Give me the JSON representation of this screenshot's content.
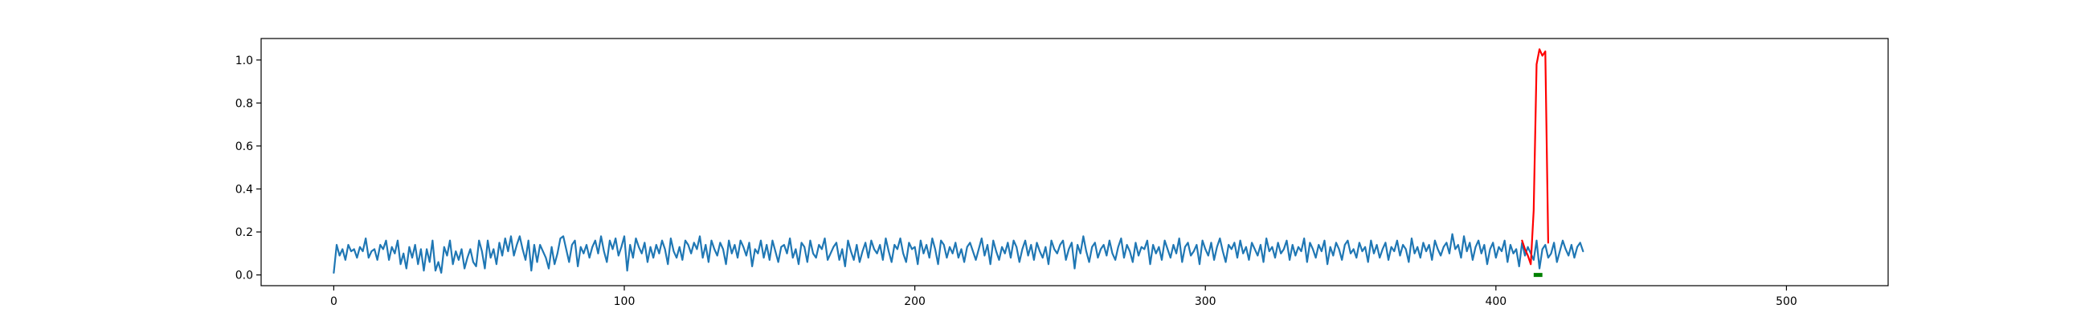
{
  "chart_data": {
    "type": "line",
    "title": "",
    "xlabel": "",
    "ylabel": "",
    "xlim": [
      -25,
      535
    ],
    "ylim": [
      -0.05,
      1.1
    ],
    "grid": false,
    "xticks": [
      0,
      100,
      200,
      300,
      400,
      500
    ],
    "xtick_labels": [
      "0",
      "100",
      "200",
      "300",
      "400",
      "500"
    ],
    "yticks": [
      0.0,
      0.2,
      0.4,
      0.6,
      0.8,
      1.0
    ],
    "ytick_labels": [
      "0.0",
      "0.2",
      "0.4",
      "0.6",
      "0.8",
      "1.0"
    ],
    "series": [
      {
        "color": "#1f77b4",
        "x_start": 0,
        "x_step": 1,
        "values": [
          0.01,
          0.14,
          0.09,
          0.12,
          0.07,
          0.14,
          0.11,
          0.12,
          0.08,
          0.13,
          0.11,
          0.17,
          0.08,
          0.11,
          0.12,
          0.07,
          0.14,
          0.12,
          0.16,
          0.07,
          0.13,
          0.1,
          0.16,
          0.05,
          0.1,
          0.03,
          0.13,
          0.08,
          0.14,
          0.05,
          0.12,
          0.02,
          0.12,
          0.06,
          0.16,
          0.02,
          0.06,
          0.01,
          0.13,
          0.09,
          0.16,
          0.05,
          0.11,
          0.07,
          0.12,
          0.03,
          0.08,
          0.12,
          0.06,
          0.04,
          0.16,
          0.11,
          0.03,
          0.16,
          0.08,
          0.12,
          0.05,
          0.15,
          0.09,
          0.17,
          0.11,
          0.18,
          0.09,
          0.14,
          0.18,
          0.12,
          0.07,
          0.16,
          0.02,
          0.14,
          0.06,
          0.14,
          0.11,
          0.08,
          0.03,
          0.13,
          0.05,
          0.1,
          0.17,
          0.18,
          0.12,
          0.06,
          0.14,
          0.16,
          0.04,
          0.13,
          0.1,
          0.14,
          0.08,
          0.13,
          0.16,
          0.1,
          0.18,
          0.11,
          0.06,
          0.16,
          0.12,
          0.17,
          0.09,
          0.13,
          0.18,
          0.02,
          0.14,
          0.08,
          0.17,
          0.13,
          0.1,
          0.15,
          0.06,
          0.13,
          0.08,
          0.14,
          0.1,
          0.16,
          0.12,
          0.05,
          0.17,
          0.11,
          0.08,
          0.13,
          0.07,
          0.16,
          0.14,
          0.1,
          0.15,
          0.12,
          0.18,
          0.08,
          0.14,
          0.06,
          0.16,
          0.12,
          0.09,
          0.15,
          0.12,
          0.05,
          0.16,
          0.1,
          0.14,
          0.08,
          0.16,
          0.13,
          0.09,
          0.15,
          0.04,
          0.12,
          0.1,
          0.16,
          0.08,
          0.14,
          0.07,
          0.16,
          0.11,
          0.06,
          0.13,
          0.14,
          0.1,
          0.17,
          0.08,
          0.12,
          0.05,
          0.15,
          0.13,
          0.06,
          0.16,
          0.1,
          0.08,
          0.14,
          0.12,
          0.17,
          0.07,
          0.1,
          0.13,
          0.15,
          0.07,
          0.12,
          0.04,
          0.16,
          0.11,
          0.07,
          0.14,
          0.06,
          0.11,
          0.15,
          0.08,
          0.16,
          0.12,
          0.1,
          0.14,
          0.07,
          0.17,
          0.11,
          0.06,
          0.14,
          0.12,
          0.17,
          0.1,
          0.06,
          0.15,
          0.12,
          0.13,
          0.05,
          0.16,
          0.1,
          0.14,
          0.08,
          0.17,
          0.12,
          0.05,
          0.16,
          0.14,
          0.08,
          0.13,
          0.1,
          0.15,
          0.08,
          0.12,
          0.06,
          0.13,
          0.15,
          0.11,
          0.07,
          0.12,
          0.17,
          0.09,
          0.14,
          0.05,
          0.16,
          0.11,
          0.07,
          0.13,
          0.1,
          0.15,
          0.08,
          0.16,
          0.13,
          0.06,
          0.12,
          0.16,
          0.09,
          0.14,
          0.07,
          0.15,
          0.11,
          0.08,
          0.13,
          0.05,
          0.16,
          0.12,
          0.1,
          0.14,
          0.16,
          0.07,
          0.12,
          0.15,
          0.03,
          0.14,
          0.1,
          0.18,
          0.11,
          0.06,
          0.13,
          0.15,
          0.08,
          0.12,
          0.14,
          0.09,
          0.16,
          0.1,
          0.07,
          0.13,
          0.17,
          0.08,
          0.14,
          0.11,
          0.06,
          0.15,
          0.09,
          0.13,
          0.12,
          0.16,
          0.05,
          0.14,
          0.1,
          0.13,
          0.07,
          0.16,
          0.12,
          0.08,
          0.14,
          0.1,
          0.17,
          0.06,
          0.13,
          0.15,
          0.09,
          0.11,
          0.14,
          0.05,
          0.16,
          0.12,
          0.09,
          0.15,
          0.07,
          0.13,
          0.17,
          0.11,
          0.06,
          0.14,
          0.12,
          0.15,
          0.08,
          0.16,
          0.1,
          0.13,
          0.07,
          0.15,
          0.12,
          0.09,
          0.14,
          0.06,
          0.17,
          0.11,
          0.13,
          0.08,
          0.15,
          0.1,
          0.12,
          0.16,
          0.07,
          0.14,
          0.09,
          0.13,
          0.11,
          0.17,
          0.06,
          0.15,
          0.12,
          0.08,
          0.14,
          0.11,
          0.16,
          0.05,
          0.13,
          0.09,
          0.15,
          0.12,
          0.07,
          0.14,
          0.16,
          0.1,
          0.12,
          0.08,
          0.15,
          0.11,
          0.13,
          0.06,
          0.16,
          0.1,
          0.14,
          0.08,
          0.12,
          0.15,
          0.07,
          0.13,
          0.11,
          0.16,
          0.09,
          0.14,
          0.12,
          0.06,
          0.17,
          0.1,
          0.13,
          0.08,
          0.15,
          0.11,
          0.14,
          0.07,
          0.16,
          0.12,
          0.09,
          0.13,
          0.15,
          0.1,
          0.19,
          0.12,
          0.14,
          0.08,
          0.18,
          0.11,
          0.15,
          0.07,
          0.13,
          0.16,
          0.1,
          0.14,
          0.05,
          0.12,
          0.15,
          0.08,
          0.13,
          0.11,
          0.16,
          0.06,
          0.14,
          0.1,
          0.12,
          0.04,
          0.15,
          0.09,
          0.13,
          0.1,
          0.07,
          0.16,
          0.03,
          0.12,
          0.14,
          0.08,
          0.1,
          0.15,
          0.06,
          0.11,
          0.16,
          0.12,
          0.09,
          0.14,
          0.08,
          0.13,
          0.15,
          0.11
        ]
      },
      {
        "color": "#ff0000",
        "x_start": 409,
        "x_step": 1,
        "values": [
          0.16,
          0.12,
          0.09,
          0.05,
          0.3,
          0.98,
          1.05,
          1.02,
          1.04,
          0.15
        ]
      },
      {
        "color": "#008000",
        "x_start": 413,
        "x_step": 1,
        "values": [
          0.0,
          0.0,
          0.0,
          0.0
        ]
      }
    ]
  }
}
